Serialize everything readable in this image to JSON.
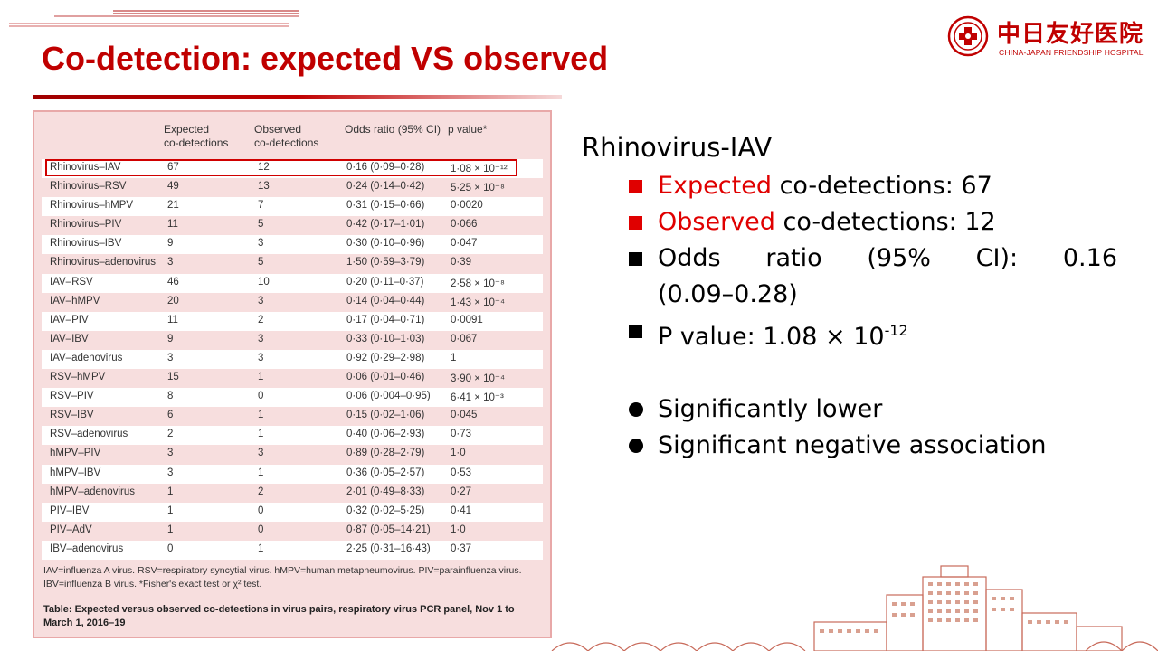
{
  "title": "Co-detection: expected VS observed",
  "logo": {
    "cn": "中日友好医院",
    "en": "CHINA-JAPAN FRIENDSHIP HOSPITAL"
  },
  "table": {
    "headers": {
      "expected": [
        "Expected",
        "co-detections"
      ],
      "observed": [
        "Observed",
        "co-detections"
      ],
      "odds_ratio": "Odds ratio (95% CI)",
      "p_value": "p value*"
    },
    "rows": [
      {
        "pair": "Rhinovirus–IAV",
        "expected": "67",
        "observed": "12",
        "odds_ratio": "0·16 (0·09–0·28)",
        "p_value": "1·08 × 10⁻¹²"
      },
      {
        "pair": "Rhinovirus–RSV",
        "expected": "49",
        "observed": "13",
        "odds_ratio": "0·24 (0·14–0·42)",
        "p_value": "5·25 × 10⁻⁸"
      },
      {
        "pair": "Rhinovirus–hMPV",
        "expected": "21",
        "observed": "7",
        "odds_ratio": "0·31 (0·15–0·66)",
        "p_value": "0·0020"
      },
      {
        "pair": "Rhinovirus–PIV",
        "expected": "11",
        "observed": "5",
        "odds_ratio": "0·42 (0·17–1·01)",
        "p_value": "0·066"
      },
      {
        "pair": "Rhinovirus–IBV",
        "expected": "9",
        "observed": "3",
        "odds_ratio": "0·30 (0·10–0·96)",
        "p_value": "0·047"
      },
      {
        "pair": "Rhinovirus–adenovirus",
        "expected": "3",
        "observed": "5",
        "odds_ratio": "1·50 (0·59–3·79)",
        "p_value": "0·39"
      },
      {
        "pair": "IAV–RSV",
        "expected": "46",
        "observed": "10",
        "odds_ratio": "0·20 (0·11–0·37)",
        "p_value": "2·58 × 10⁻⁸"
      },
      {
        "pair": "IAV–hMPV",
        "expected": "20",
        "observed": "3",
        "odds_ratio": "0·14 (0·04–0·44)",
        "p_value": "1·43 × 10⁻⁴"
      },
      {
        "pair": "IAV–PIV",
        "expected": "11",
        "observed": "2",
        "odds_ratio": "0·17 (0·04–0·71)",
        "p_value": "0·0091"
      },
      {
        "pair": "IAV–IBV",
        "expected": "9",
        "observed": "3",
        "odds_ratio": "0·33 (0·10–1·03)",
        "p_value": "0·067"
      },
      {
        "pair": "IAV–adenovirus",
        "expected": "3",
        "observed": "3",
        "odds_ratio": "0·92 (0·29–2·98)",
        "p_value": "1"
      },
      {
        "pair": "RSV–hMPV",
        "expected": "15",
        "observed": "1",
        "odds_ratio": "0·06 (0·01–0·46)",
        "p_value": "3·90 × 10⁻⁴"
      },
      {
        "pair": "RSV–PIV",
        "expected": "8",
        "observed": "0",
        "odds_ratio": "0·06 (0·004–0·95)",
        "p_value": "6·41 × 10⁻³"
      },
      {
        "pair": "RSV–IBV",
        "expected": "6",
        "observed": "1",
        "odds_ratio": "0·15 (0·02–1·06)",
        "p_value": "0·045"
      },
      {
        "pair": "RSV–adenovirus",
        "expected": "2",
        "observed": "1",
        "odds_ratio": "0·40 (0·06–2·93)",
        "p_value": "0·73"
      },
      {
        "pair": "hMPV–PIV",
        "expected": "3",
        "observed": "3",
        "odds_ratio": "0·89 (0·28–2·79)",
        "p_value": "1·0"
      },
      {
        "pair": "hMPV–IBV",
        "expected": "3",
        "observed": "1",
        "odds_ratio": "0·36 (0·05–2·57)",
        "p_value": "0·53"
      },
      {
        "pair": "hMPV–adenovirus",
        "expected": "1",
        "observed": "2",
        "odds_ratio": "2·01 (0·49–8·33)",
        "p_value": "0·27"
      },
      {
        "pair": "PIV–IBV",
        "expected": "1",
        "observed": "0",
        "odds_ratio": "0·32 (0·02–5·25)",
        "p_value": "0·41"
      },
      {
        "pair": "PIV–AdV",
        "expected": "1",
        "observed": "0",
        "odds_ratio": "0·87 (0·05–14·21)",
        "p_value": "1·0"
      },
      {
        "pair": "IBV–adenovirus",
        "expected": "0",
        "observed": "1",
        "odds_ratio": "2·25 (0·31–16·43)",
        "p_value": "0·37"
      }
    ],
    "footnote_lines": [
      "IAV=influenza A virus. RSV=respiratory syncytial virus. hMPV=human metapneumovirus. PIV=parainfluenza virus.",
      "IBV=influenza B virus. *Fisher's exact test or χ² test."
    ],
    "caption_label": "Table:",
    "caption_text": " Expected versus observed co-detections in virus pairs, respiratory virus PCR panel, Nov 1 to March 1, 2016–19"
  },
  "summary": {
    "heading": "Rhinovirus-IAV",
    "expected_label": "Expected",
    "expected_rest": " co-detections: 67",
    "observed_label": "Observed",
    "observed_rest": " co-detections: 12",
    "odds_words": [
      "Odds",
      "ratio",
      "(95%",
      "CI):",
      "0.16"
    ],
    "odds_line2": "(0.09–0.28)",
    "p_value_text": "P value: 1.08 × 10",
    "p_value_exp": "-12",
    "conclusions": [
      "Significantly lower",
      "Significant negative association"
    ]
  },
  "colors": {
    "accent": "#c00000",
    "bullet_red": "#e00000",
    "table_bg": "#f7dede"
  }
}
